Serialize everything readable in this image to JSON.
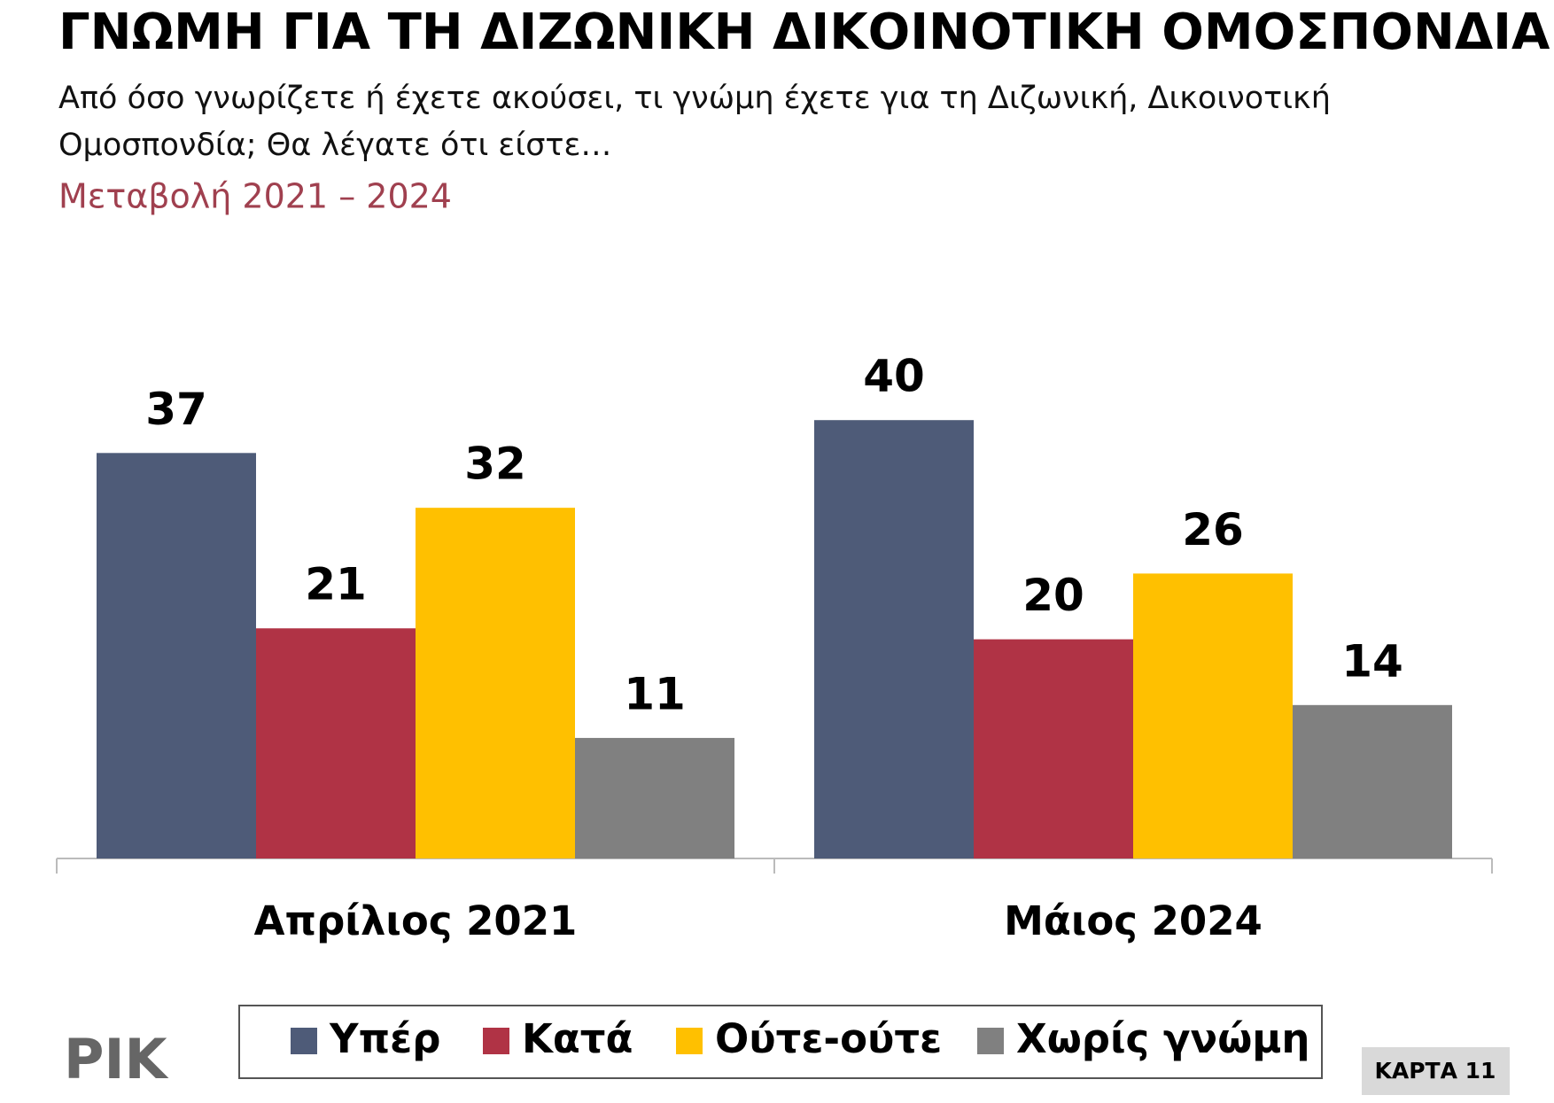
{
  "chart_data": {
    "type": "bar",
    "title": "ΓΝΩΜΗ ΓΙΑ ΤΗ ΔΙΖΩΝΙΚΗ ΔΙΚΟΙΝΟΤΙΚΗ ΟΜΟΣΠΟΝΔΙΑ",
    "subtitle": [
      "Από όσο γνωρίζετε ή έχετε ακούσει, τι γνώμη έχετε για τη Διζωνική, Δικοινοτική",
      "Ομοσπονδία; Θα λέγατε ότι είστε…"
    ],
    "change_label": "Μεταβολή 2021 – 2024",
    "categories": [
      "Απρίλιος 2021",
      "Μάιος 2024"
    ],
    "series": [
      {
        "name": "Υπέρ",
        "color": "#4e5b78",
        "values": [
          37,
          40
        ]
      },
      {
        "name": "Κατά",
        "color": "#b03345",
        "values": [
          21,
          20
        ]
      },
      {
        "name": "Ούτε-ούτε",
        "color": "#ffc000",
        "values": [
          32,
          26
        ]
      },
      {
        "name": "Χωρίς γνώμη",
        "color": "#808080",
        "values": [
          11,
          14
        ]
      }
    ],
    "logo": "ΡΙΚ",
    "card_label": "ΚΑΡΤΑ 11"
  }
}
